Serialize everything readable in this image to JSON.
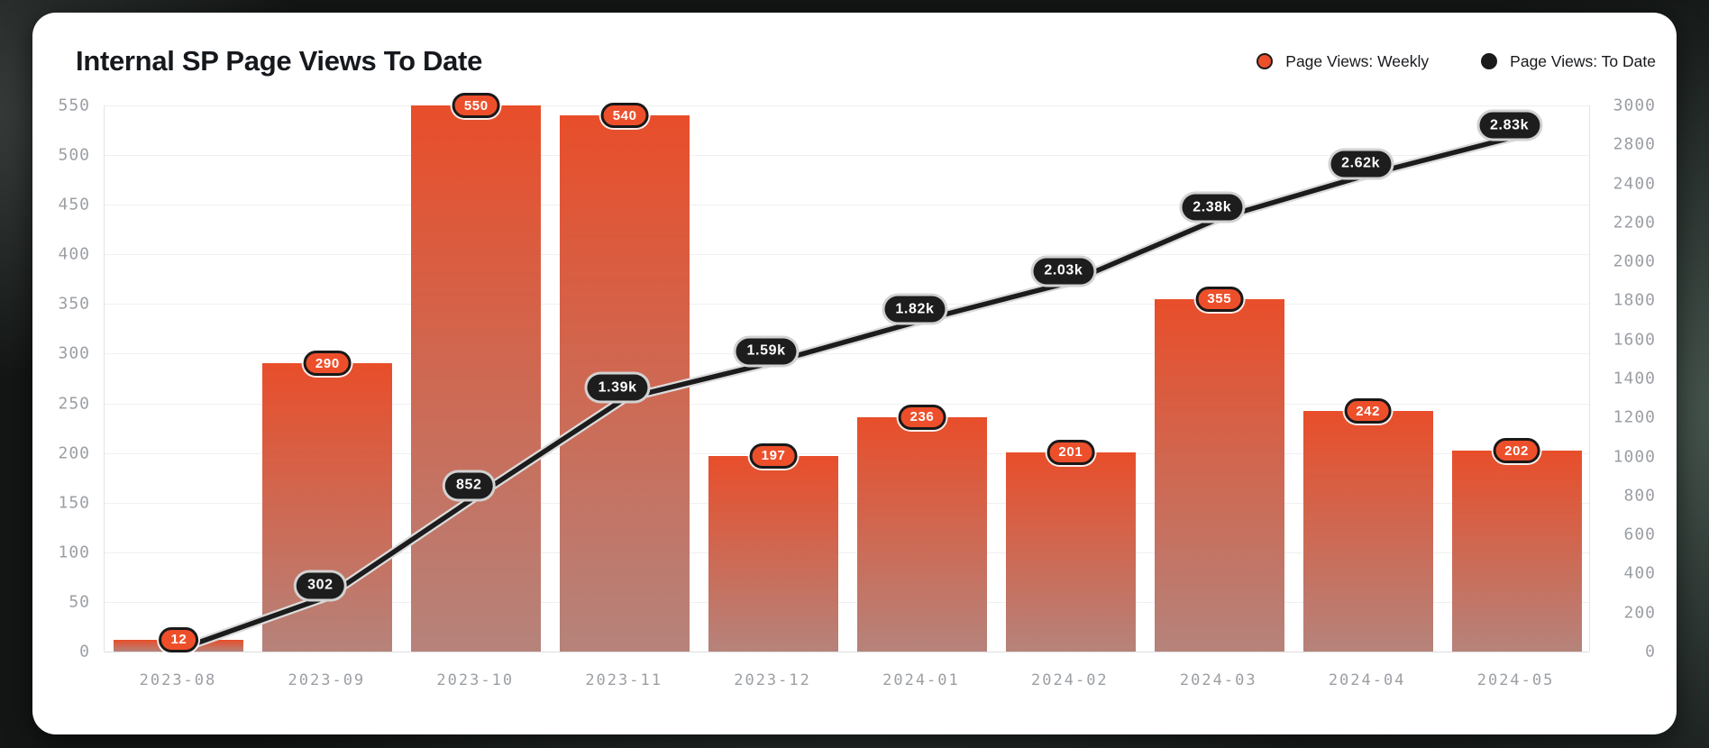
{
  "header": {
    "title": "Internal SP Page Views To Date",
    "legend": [
      {
        "label": "Page Views: Weekly",
        "color": "#ed4f2b"
      },
      {
        "label": "Page Views: To Date",
        "color": "#1b1b1b"
      }
    ]
  },
  "chart_data": {
    "type": "bar+line",
    "title": "Internal SP Page Views To Date",
    "categories": [
      "2023-08",
      "2023-09",
      "2023-10",
      "2023-11",
      "2023-12",
      "2024-01",
      "2024-02",
      "2024-03",
      "2024-04",
      "2024-05"
    ],
    "series": [
      {
        "name": "Page Views: Weekly",
        "type": "bar",
        "axis": "left",
        "values": [
          12,
          290,
          550,
          540,
          197,
          236,
          201,
          355,
          242,
          202
        ],
        "point_labels": [
          "12",
          "290",
          "550",
          "540",
          "197",
          "236",
          "201",
          "355",
          "242",
          "202"
        ]
      },
      {
        "name": "Page Views: To Date",
        "type": "line",
        "axis": "right",
        "values": [
          12,
          302,
          852,
          1390,
          1590,
          1820,
          2030,
          2380,
          2620,
          2830
        ],
        "point_labels": [
          "",
          "302",
          "852",
          "1.39k",
          "1.59k",
          "1.82k",
          "2.03k",
          "2.38k",
          "2.62k",
          "2.83k"
        ]
      }
    ],
    "left_axis": {
      "min": 0,
      "max": 550,
      "tick_labels": [
        "550",
        "500",
        "450",
        "400",
        "350",
        "300",
        "250",
        "200",
        "150",
        "100",
        "50",
        "0"
      ]
    },
    "right_axis": {
      "min": 0,
      "max": 3000,
      "tick_labels": [
        "3000",
        "2800",
        "2400",
        "2200",
        "2000",
        "1800",
        "1600",
        "1400",
        "1200",
        "1000",
        "800",
        "600",
        "400",
        "200",
        "0"
      ]
    },
    "grid": true,
    "legend_position": "top-right",
    "colors": {
      "bar_gradient_top": "#e84e2a",
      "bar_gradient_bottom": "#b5837b",
      "line": "#1c1c1c",
      "line_halo": "#dcdcdc",
      "grid": "#f0f0f0",
      "axis_text": "#9b9fa4",
      "bar_badge_bg": "#ed4f2b",
      "line_badge_bg": "#1d1d1d"
    }
  }
}
